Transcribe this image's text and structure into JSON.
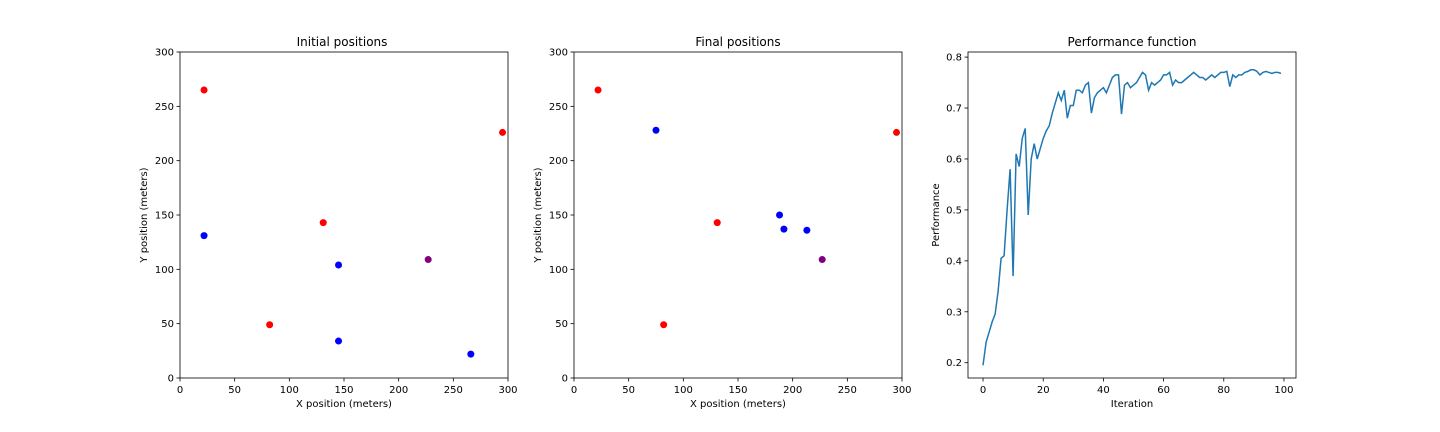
{
  "chart_data": [
    {
      "type": "scatter",
      "title": "Initial positions",
      "xlabel": "X position (meters)",
      "ylabel": "Y position (meters)",
      "xlim": [
        0,
        300
      ],
      "ylim": [
        0,
        300
      ],
      "xticks": [
        0,
        50,
        100,
        150,
        200,
        250,
        300
      ],
      "yticks": [
        0,
        50,
        100,
        150,
        200,
        250,
        300
      ],
      "points": [
        {
          "x": 22,
          "y": 265,
          "color": "#ff0000"
        },
        {
          "x": 295,
          "y": 226,
          "color": "#ff0000"
        },
        {
          "x": 131,
          "y": 143,
          "color": "#ff0000"
        },
        {
          "x": 82,
          "y": 49,
          "color": "#ff0000"
        },
        {
          "x": 22,
          "y": 131,
          "color": "#0000ff"
        },
        {
          "x": 145,
          "y": 104,
          "color": "#0000ff"
        },
        {
          "x": 145,
          "y": 34,
          "color": "#0000ff"
        },
        {
          "x": 266,
          "y": 22,
          "color": "#0000ff"
        },
        {
          "x": 227,
          "y": 109,
          "color": "#800080"
        }
      ]
    },
    {
      "type": "scatter",
      "title": "Final positions",
      "xlabel": "X position (meters)",
      "ylabel": "Y position (meters)",
      "xlim": [
        0,
        300
      ],
      "ylim": [
        0,
        300
      ],
      "xticks": [
        0,
        50,
        100,
        150,
        200,
        250,
        300
      ],
      "yticks": [
        0,
        50,
        100,
        150,
        200,
        250,
        300
      ],
      "points": [
        {
          "x": 22,
          "y": 265,
          "color": "#ff0000"
        },
        {
          "x": 295,
          "y": 226,
          "color": "#ff0000"
        },
        {
          "x": 131,
          "y": 143,
          "color": "#ff0000"
        },
        {
          "x": 82,
          "y": 49,
          "color": "#ff0000"
        },
        {
          "x": 75,
          "y": 228,
          "color": "#0000ff"
        },
        {
          "x": 188,
          "y": 150,
          "color": "#0000ff"
        },
        {
          "x": 192,
          "y": 137,
          "color": "#0000ff"
        },
        {
          "x": 213,
          "y": 136,
          "color": "#0000ff"
        },
        {
          "x": 227,
          "y": 109,
          "color": "#800080"
        }
      ]
    },
    {
      "type": "line",
      "title": "Performance function",
      "xlabel": "Iteration",
      "ylabel": "Performance",
      "xlim": [
        -5,
        104
      ],
      "ylim": [
        0.17,
        0.81
      ],
      "xticks": [
        0,
        20,
        40,
        60,
        80,
        100
      ],
      "yticks": [
        0.2,
        0.3,
        0.4,
        0.5,
        0.6,
        0.7,
        0.8
      ],
      "color": "#1f77b4",
      "x": [
        0,
        1,
        2,
        3,
        4,
        5,
        6,
        7,
        8,
        9,
        10,
        11,
        12,
        13,
        14,
        15,
        16,
        17,
        18,
        19,
        20,
        21,
        22,
        23,
        24,
        25,
        26,
        27,
        28,
        29,
        30,
        31,
        32,
        33,
        34,
        35,
        36,
        37,
        38,
        39,
        40,
        41,
        42,
        43,
        44,
        45,
        46,
        47,
        48,
        49,
        50,
        51,
        52,
        53,
        54,
        55,
        56,
        57,
        58,
        59,
        60,
        61,
        62,
        63,
        64,
        65,
        66,
        67,
        68,
        69,
        70,
        71,
        72,
        73,
        74,
        75,
        76,
        77,
        78,
        79,
        80,
        81,
        82,
        83,
        84,
        85,
        86,
        87,
        88,
        89,
        90,
        91,
        92,
        93,
        94,
        95,
        96,
        97,
        98,
        99
      ],
      "values": [
        0.195,
        0.24,
        0.26,
        0.28,
        0.295,
        0.34,
        0.405,
        0.41,
        0.5,
        0.58,
        0.37,
        0.61,
        0.585,
        0.64,
        0.66,
        0.49,
        0.6,
        0.63,
        0.6,
        0.62,
        0.64,
        0.655,
        0.665,
        0.69,
        0.71,
        0.73,
        0.715,
        0.735,
        0.68,
        0.705,
        0.705,
        0.735,
        0.735,
        0.73,
        0.745,
        0.75,
        0.69,
        0.72,
        0.73,
        0.735,
        0.74,
        0.73,
        0.745,
        0.76,
        0.765,
        0.765,
        0.688,
        0.745,
        0.75,
        0.74,
        0.745,
        0.75,
        0.76,
        0.77,
        0.765,
        0.735,
        0.75,
        0.745,
        0.75,
        0.755,
        0.765,
        0.765,
        0.77,
        0.745,
        0.755,
        0.75,
        0.75,
        0.755,
        0.76,
        0.765,
        0.77,
        0.765,
        0.76,
        0.76,
        0.755,
        0.76,
        0.765,
        0.76,
        0.765,
        0.77,
        0.77,
        0.772,
        0.742,
        0.765,
        0.76,
        0.765,
        0.765,
        0.77,
        0.772,
        0.775,
        0.775,
        0.772,
        0.765,
        0.77,
        0.772,
        0.77,
        0.768,
        0.77,
        0.77,
        0.768
      ]
    }
  ]
}
